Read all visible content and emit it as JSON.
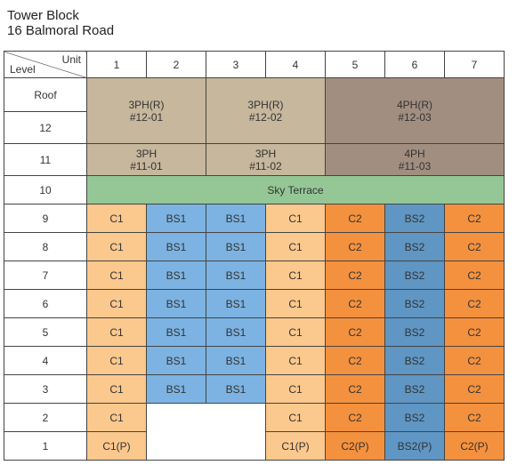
{
  "title": {
    "line1": "Tower Block",
    "line2": "16 Balmoral Road"
  },
  "header": {
    "unit_label": "Unit",
    "level_label": "Level",
    "units": [
      "1",
      "2",
      "3",
      "4",
      "5",
      "6",
      "7"
    ]
  },
  "levels": {
    "roof": "Roof",
    "l12": "12",
    "l11": "11",
    "l10": "10",
    "l9": "9",
    "l8": "8",
    "l7": "7",
    "l6": "6",
    "l5": "5",
    "l4": "4",
    "l3": "3",
    "l2": "2",
    "l1": "1"
  },
  "penthouses": {
    "upper": [
      {
        "type": "3PH(R)",
        "unit": "#12-01"
      },
      {
        "type": "3PH(R)",
        "unit": "#12-02"
      },
      {
        "type": "4PH(R)",
        "unit": "#12-03"
      }
    ],
    "lower": [
      {
        "type": "3PH",
        "unit": "#11-01"
      },
      {
        "type": "3PH",
        "unit": "#11-02"
      },
      {
        "type": "4PH",
        "unit": "#11-03"
      }
    ]
  },
  "sky_terrace": "Sky Terrace",
  "floor_types": {
    "c1": "C1",
    "bs1": "BS1",
    "c2": "C2",
    "bs2": "BS2"
  },
  "level1": {
    "u1": "C1(P)",
    "u4": "C1(P)",
    "u5": "C2(P)",
    "u6": "BS2(P)",
    "u7": "C2(P)"
  },
  "colors": {
    "C1": "#fbc88d",
    "BS1": "#7cb3e2",
    "C2": "#f4913e",
    "BS2": "#5f96c4",
    "3PH": "#c6b79d",
    "4PH": "#a28e80",
    "Sky Terrace": "#94c795"
  }
}
